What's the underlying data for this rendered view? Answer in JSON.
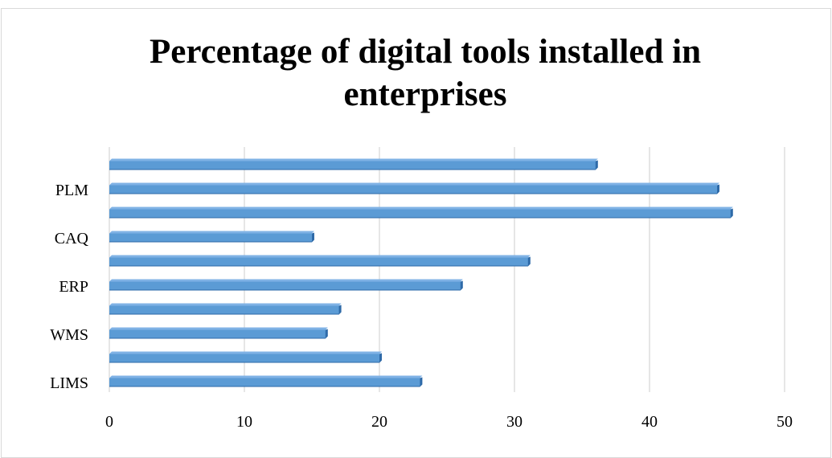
{
  "chart_data": {
    "type": "bar",
    "orientation": "horizontal",
    "title_lines": [
      "Percentage of digital tools installed in",
      "enterprises"
    ],
    "categories": [
      "LIMS",
      "",
      "WMS",
      "",
      "ERP",
      "",
      "CAQ",
      "",
      "PLM",
      ""
    ],
    "values": [
      23,
      20,
      16,
      17,
      26,
      31,
      15,
      46,
      45,
      36
    ],
    "xlim": [
      0,
      50
    ],
    "x_ticks": [
      "0",
      "10",
      "20",
      "30",
      "40",
      "50"
    ],
    "xlabel": "",
    "ylabel": "",
    "grid": "vertical",
    "legend": "none",
    "bar_color": "#5b9bd5",
    "bar_dark_color": "#2e6aa8",
    "grid_color": "#d9d9d9"
  }
}
